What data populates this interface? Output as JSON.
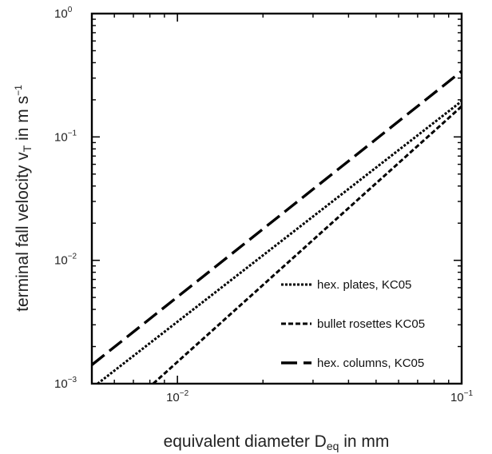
{
  "chart_data": {
    "type": "line",
    "scale": {
      "x": "log",
      "y": "log"
    },
    "xlim": [
      0.005,
      0.1
    ],
    "ylim": [
      0.001,
      1
    ],
    "xlabel": {
      "base": "equivalent diameter D",
      "sub": "eq",
      "rest": " in mm"
    },
    "ylabel": {
      "base": "terminal fall velocity v",
      "sub": "T",
      "mid": " in m s",
      "sup": "−1"
    },
    "x_ticks": [
      {
        "value": 0.01,
        "base": "10",
        "exp": "−2"
      },
      {
        "value": 0.1,
        "base": "10",
        "exp": "−1"
      }
    ],
    "y_ticks": [
      {
        "value": 0.001,
        "base": "10",
        "exp": "−3"
      },
      {
        "value": 0.01,
        "base": "10",
        "exp": "−2"
      },
      {
        "value": 0.1,
        "base": "10",
        "exp": "−1"
      },
      {
        "value": 1,
        "base": "10",
        "exp": "0"
      }
    ],
    "grid": false,
    "legend_position": "bottom-right",
    "series": [
      {
        "name": "hex. plates, KC05",
        "style": "dotted",
        "x": [
          0.00524,
          0.1
        ],
        "y": [
          0.001,
          0.195
        ]
      },
      {
        "name": "bullet rosettes KC05",
        "style": "short-dashed",
        "x": [
          0.00822,
          0.1
        ],
        "y": [
          0.001,
          0.177
        ]
      },
      {
        "name": "hex. columns, KC05",
        "style": "long-dashed",
        "x": [
          0.005,
          0.1
        ],
        "y": [
          0.00142,
          0.341
        ]
      }
    ]
  }
}
